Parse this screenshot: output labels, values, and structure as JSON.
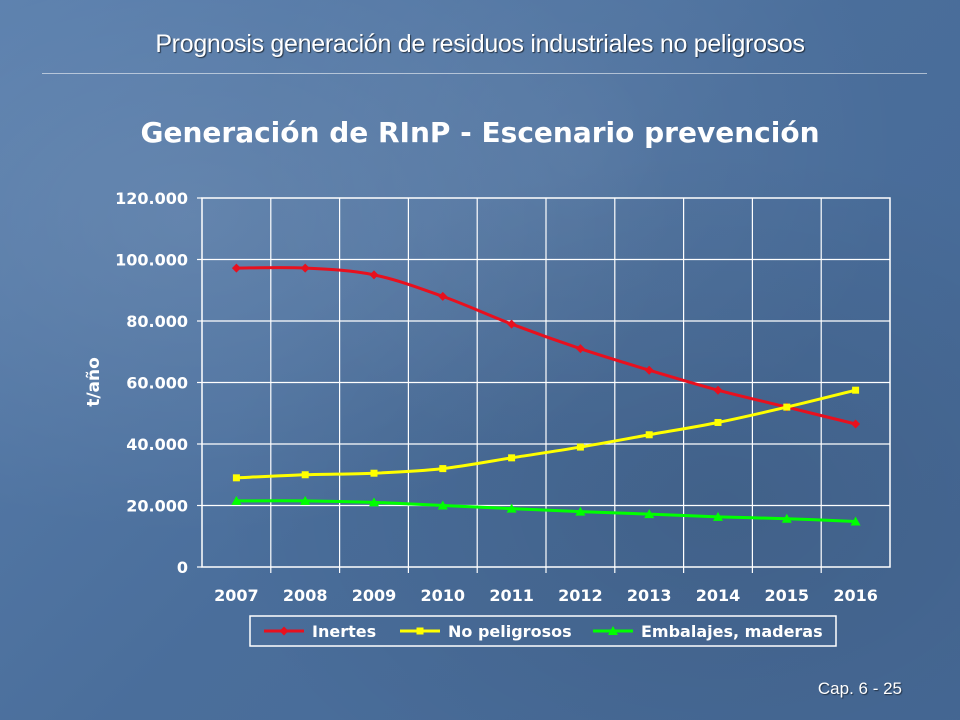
{
  "slide": {
    "title": "Prognosis generación de residuos industriales no peligrosos",
    "footer": "Cap. 6 - 25"
  },
  "chart_data": {
    "type": "line",
    "title": "Generación de RInP - Escenario prevención",
    "xlabel": "",
    "ylabel": "t/año",
    "categories": [
      "2007",
      "2008",
      "2009",
      "2010",
      "2011",
      "2012",
      "2013",
      "2014",
      "2015",
      "2016"
    ],
    "ylim": [
      0,
      120000
    ],
    "yticks": [
      0,
      20000,
      40000,
      60000,
      80000,
      100000,
      120000
    ],
    "ytick_labels": [
      "0",
      "20.000",
      "40.000",
      "60.000",
      "80.000",
      "100.000",
      "120.000"
    ],
    "grid": true,
    "legend_position": "bottom",
    "series": [
      {
        "name": "Inertes",
        "color": "#e8101e",
        "marker": "diamond",
        "values": [
          97200,
          97200,
          95000,
          88000,
          79000,
          71000,
          64000,
          57500,
          52000,
          46500
        ]
      },
      {
        "name": "No peligrosos",
        "color": "#ffff00",
        "marker": "square",
        "values": [
          29000,
          30000,
          30500,
          32000,
          35500,
          39000,
          43000,
          47000,
          52000,
          57500
        ]
      },
      {
        "name": "Embalajes, maderas",
        "color": "#00ff00",
        "marker": "triangle",
        "values": [
          21500,
          21500,
          21000,
          20000,
          19000,
          18000,
          17200,
          16300,
          15700,
          14800
        ]
      }
    ]
  }
}
